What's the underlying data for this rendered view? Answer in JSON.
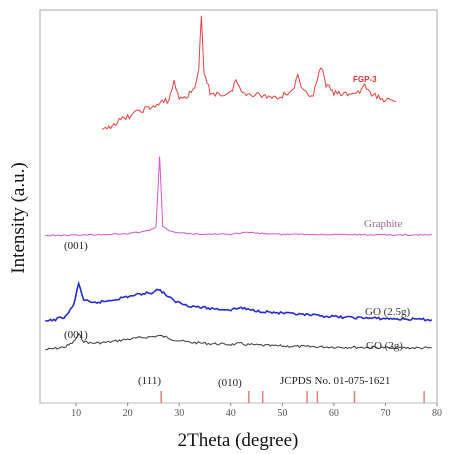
{
  "chart_data": {
    "type": "line",
    "xlabel": "2Theta (degree)",
    "ylabel": "Intensity (a.u.)",
    "xlim": [
      3,
      80
    ],
    "x_ticks": [
      "10",
      "20",
      "30",
      "40",
      "50",
      "60",
      "70",
      "80"
    ],
    "series": [
      {
        "name": "GO (2g)",
        "color": "#3a3a3a",
        "points": [
          [
            4,
            0.1
          ],
          [
            6,
            0.16
          ],
          [
            8,
            0.24
          ],
          [
            9.5,
            0.45
          ],
          [
            10.5,
            0.8
          ],
          [
            11.5,
            0.48
          ],
          [
            13,
            0.4
          ],
          [
            16,
            0.44
          ],
          [
            20,
            0.58
          ],
          [
            23,
            0.66
          ],
          [
            25,
            0.7
          ],
          [
            26,
            0.74
          ],
          [
            27,
            0.7
          ],
          [
            29,
            0.56
          ],
          [
            32,
            0.44
          ],
          [
            36,
            0.38
          ],
          [
            40,
            0.34
          ],
          [
            42,
            0.38
          ],
          [
            43,
            0.34
          ],
          [
            48,
            0.28
          ],
          [
            55,
            0.24
          ],
          [
            62,
            0.22
          ],
          [
            70,
            0.2
          ],
          [
            79,
            0.18
          ]
        ]
      },
      {
        "name": "GO (2.5g)",
        "color": "#2b2bd6",
        "points": [
          [
            4,
            0.06
          ],
          [
            6,
            0.16
          ],
          [
            8,
            0.3
          ],
          [
            9.5,
            0.8
          ],
          [
            10.5,
            1.8
          ],
          [
            11.5,
            1.05
          ],
          [
            13,
            0.9
          ],
          [
            16,
            1.0
          ],
          [
            20,
            1.2
          ],
          [
            23,
            1.34
          ],
          [
            25,
            1.4
          ],
          [
            26,
            1.54
          ],
          [
            27,
            1.36
          ],
          [
            29,
            1.0
          ],
          [
            32,
            0.78
          ],
          [
            36,
            0.66
          ],
          [
            40,
            0.6
          ],
          [
            42,
            0.7
          ],
          [
            43,
            0.62
          ],
          [
            48,
            0.48
          ],
          [
            55,
            0.36
          ],
          [
            62,
            0.26
          ],
          [
            70,
            0.2
          ],
          [
            79,
            0.15
          ]
        ]
      },
      {
        "name": "Graphite",
        "color": "#d455d4",
        "points": [
          [
            4,
            0.02
          ],
          [
            10,
            0.04
          ],
          [
            20,
            0.1
          ],
          [
            24,
            0.24
          ],
          [
            25.5,
            0.4
          ],
          [
            26.2,
            3.6
          ],
          [
            26.8,
            0.45
          ],
          [
            28,
            0.22
          ],
          [
            32,
            0.1
          ],
          [
            40,
            0.08
          ],
          [
            43,
            0.16
          ],
          [
            44.5,
            0.14
          ],
          [
            48,
            0.08
          ],
          [
            55,
            0.07
          ],
          [
            62,
            0.06
          ],
          [
            70,
            0.05
          ],
          [
            79,
            0.05
          ]
        ]
      },
      {
        "name": "FGP-3",
        "color": "#e84040",
        "points": [
          [
            15,
            0.0
          ],
          [
            17,
            0.3
          ],
          [
            19,
            0.5
          ],
          [
            21,
            0.7
          ],
          [
            23,
            0.9
          ],
          [
            25,
            1.0
          ],
          [
            27,
            1.2
          ],
          [
            28,
            1.3
          ],
          [
            29,
            2.0
          ],
          [
            30,
            1.35
          ],
          [
            31,
            1.4
          ],
          [
            32,
            1.5
          ],
          [
            33,
            1.8
          ],
          [
            33.8,
            2.6
          ],
          [
            34.3,
            4.6
          ],
          [
            34.8,
            2.3
          ],
          [
            36,
            1.6
          ],
          [
            38,
            1.5
          ],
          [
            40,
            1.55
          ],
          [
            41,
            2.1
          ],
          [
            42,
            1.6
          ],
          [
            45,
            1.5
          ],
          [
            48,
            1.4
          ],
          [
            50,
            1.45
          ],
          [
            52,
            1.7
          ],
          [
            53,
            2.2
          ],
          [
            54,
            1.6
          ],
          [
            56,
            1.5
          ],
          [
            57.5,
            2.6
          ],
          [
            58.5,
            1.9
          ],
          [
            60,
            1.55
          ],
          [
            62,
            1.5
          ],
          [
            65,
            1.6
          ],
          [
            66,
            1.9
          ],
          [
            67,
            1.5
          ],
          [
            70,
            1.3
          ],
          [
            72,
            1.2
          ]
        ]
      }
    ],
    "annotations": [
      "(001)",
      "(001)",
      "(111)",
      "(010)"
    ],
    "reference": {
      "label": "JCPDS No. 01-075-1621",
      "color": "#e08080",
      "positions": [
        26.5,
        43.5,
        46.2,
        54.8,
        56.8,
        64.0,
        77.5
      ]
    }
  }
}
